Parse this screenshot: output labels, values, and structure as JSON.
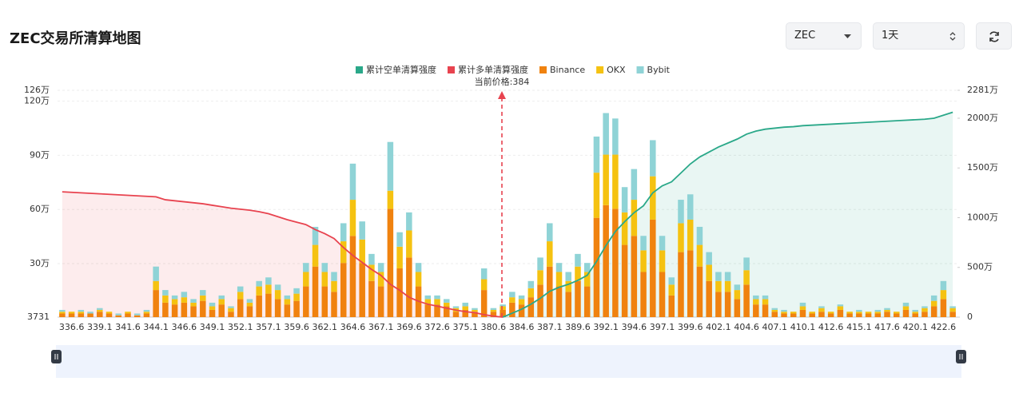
{
  "controls": {
    "symbol": "ZEC",
    "interval": "1天"
  },
  "chart_data": {
    "type": "bar",
    "title": "ZEC交易所清算地图",
    "annotation": "当前价格:384",
    "stacked": true,
    "grid": true,
    "categories": [
      null,
      "336.6",
      null,
      null,
      "339.1",
      null,
      null,
      "341.6",
      null,
      null,
      "344.1",
      null,
      null,
      "346.6",
      null,
      null,
      "349.1",
      null,
      null,
      "352.1",
      null,
      null,
      "357.1",
      null,
      null,
      "359.6",
      null,
      null,
      "362.1",
      null,
      null,
      "364.6",
      null,
      null,
      "367.1",
      null,
      null,
      "369.6",
      null,
      null,
      "372.6",
      null,
      null,
      "375.1",
      null,
      null,
      "380.6",
      null,
      null,
      "384.6",
      null,
      null,
      "387.1",
      null,
      null,
      "389.6",
      null,
      null,
      "392.1",
      null,
      null,
      "394.6",
      null,
      null,
      "397.1",
      null,
      null,
      "399.6",
      null,
      null,
      "402.1",
      null,
      null,
      "404.6",
      null,
      null,
      "407.1",
      null,
      null,
      "410.1",
      null,
      null,
      "412.6",
      null,
      null,
      "415.1",
      null,
      null,
      "417.6",
      null,
      null,
      "420.1",
      null,
      null,
      "422.6",
      null
    ],
    "ylim": [
      0.3731,
      126
    ],
    "yticks": [
      {
        "value": 0.3731,
        "label": "3731"
      },
      {
        "value": 30,
        "label": "30万"
      },
      {
        "value": 60,
        "label": "60万"
      },
      {
        "value": 90,
        "label": "90万"
      },
      {
        "value": 120,
        "label": "120万"
      },
      {
        "value": 126,
        "label": "126万"
      }
    ],
    "y2lim": [
      0,
      2281
    ],
    "y2ticks": [
      0,
      {
        "value": 500,
        "label": "500万"
      },
      {
        "value": 1000,
        "label": "1000万"
      },
      {
        "value": 1500,
        "label": "1500万"
      },
      {
        "value": 2000,
        "label": "2000万"
      },
      {
        "value": 2281,
        "label": "2281万"
      }
    ],
    "series": [
      {
        "name": "累计空单清算强度",
        "kind": "line",
        "axis": "y2",
        "color": "#2aa889",
        "values": [
          null,
          null,
          null,
          null,
          null,
          null,
          null,
          null,
          null,
          null,
          null,
          null,
          null,
          null,
          null,
          null,
          null,
          null,
          null,
          null,
          null,
          null,
          null,
          null,
          null,
          null,
          null,
          null,
          null,
          null,
          null,
          null,
          null,
          null,
          null,
          null,
          null,
          null,
          null,
          null,
          null,
          null,
          null,
          null,
          null,
          null,
          null,
          0,
          40,
          80,
          130,
          190,
          260,
          300,
          330,
          370,
          420,
          560,
          720,
          860,
          960,
          1050,
          1120,
          1250,
          1320,
          1360,
          1450,
          1540,
          1610,
          1660,
          1710,
          1750,
          1790,
          1840,
          1870,
          1890,
          1900,
          1910,
          1915,
          1925,
          1930,
          1935,
          1940,
          1945,
          1950,
          1955,
          1960,
          1965,
          1970,
          1975,
          1980,
          1985,
          1990,
          2000,
          2030,
          2060
        ]
      },
      {
        "name": "累计多单清算强度",
        "kind": "line",
        "axis": "y2",
        "color": "#e8434f",
        "values": [
          1260,
          1255,
          1250,
          1245,
          1240,
          1235,
          1230,
          1225,
          1220,
          1215,
          1210,
          1180,
          1170,
          1160,
          1150,
          1140,
          1125,
          1110,
          1095,
          1085,
          1075,
          1060,
          1040,
          1010,
          980,
          955,
          930,
          880,
          840,
          790,
          700,
          620,
          550,
          480,
          420,
          330,
          270,
          200,
          160,
          130,
          110,
          90,
          70,
          55,
          45,
          25,
          10,
          0,
          null,
          null,
          null,
          null,
          null,
          null,
          null,
          null,
          null,
          null,
          null,
          null,
          null,
          null,
          null,
          null,
          null,
          null,
          null,
          null,
          null,
          null,
          null,
          null,
          null,
          null,
          null,
          null,
          null,
          null,
          null,
          null,
          null,
          null,
          null,
          null,
          null,
          null,
          null,
          null,
          null,
          null,
          null,
          null,
          null,
          null,
          null,
          null
        ]
      },
      {
        "name": "Binance",
        "kind": "bar",
        "color": "#f0820f",
        "values": [
          2,
          2,
          2,
          2,
          3,
          2,
          1,
          2,
          1,
          2,
          15,
          8,
          7,
          8,
          6,
          9,
          4,
          7,
          3,
          10,
          6,
          12,
          13,
          10,
          7,
          9,
          17,
          28,
          17,
          14,
          30,
          45,
          30,
          20,
          17,
          60,
          27,
          33,
          17,
          7,
          7,
          6,
          3,
          4,
          3,
          15,
          3,
          4,
          8,
          7,
          11,
          18,
          28,
          17,
          14,
          20,
          17,
          55,
          62,
          60,
          40,
          45,
          25,
          54,
          25,
          12,
          36,
          37,
          28,
          20,
          14,
          14,
          10,
          18,
          7,
          7,
          3,
          2,
          2,
          4,
          2,
          3,
          2,
          4,
          2,
          2,
          2,
          2,
          3,
          2,
          4,
          2,
          3,
          6,
          10,
          3
        ]
      },
      {
        "name": "OKX",
        "kind": "bar",
        "color": "#f5c211",
        "values": [
          1,
          1,
          1,
          0,
          1,
          1,
          0,
          1,
          0,
          1,
          5,
          4,
          3,
          3,
          2,
          3,
          2,
          3,
          2,
          4,
          2,
          5,
          5,
          5,
          3,
          4,
          8,
          12,
          8,
          6,
          12,
          20,
          13,
          9,
          8,
          10,
          12,
          15,
          8,
          3,
          3,
          2,
          2,
          2,
          1,
          6,
          1,
          2,
          3,
          3,
          5,
          8,
          14,
          8,
          6,
          8,
          8,
          25,
          28,
          30,
          18,
          20,
          12,
          24,
          12,
          6,
          16,
          17,
          12,
          9,
          6,
          6,
          5,
          8,
          3,
          3,
          1,
          1,
          1,
          2,
          1,
          2,
          1,
          2,
          1,
          1,
          1,
          1,
          1,
          1,
          2,
          1,
          2,
          3,
          5,
          2
        ]
      },
      {
        "name": "Bybit",
        "kind": "bar",
        "color": "#8fd3d6",
        "values": [
          1,
          0,
          1,
          1,
          1,
          0,
          1,
          0,
          1,
          1,
          8,
          3,
          2,
          3,
          2,
          3,
          2,
          2,
          1,
          3,
          2,
          3,
          4,
          3,
          2,
          3,
          5,
          10,
          5,
          5,
          10,
          20,
          10,
          6,
          5,
          27,
          8,
          10,
          5,
          2,
          2,
          2,
          1,
          2,
          1,
          6,
          1,
          1,
          3,
          2,
          4,
          7,
          10,
          5,
          5,
          7,
          5,
          20,
          23,
          20,
          14,
          17,
          8,
          20,
          8,
          4,
          13,
          14,
          10,
          7,
          5,
          5,
          3,
          7,
          2,
          2,
          1,
          1,
          0,
          2,
          0,
          1,
          0,
          1,
          0,
          1,
          0,
          1,
          1,
          0,
          2,
          1,
          1,
          3,
          5,
          1
        ]
      }
    ]
  }
}
